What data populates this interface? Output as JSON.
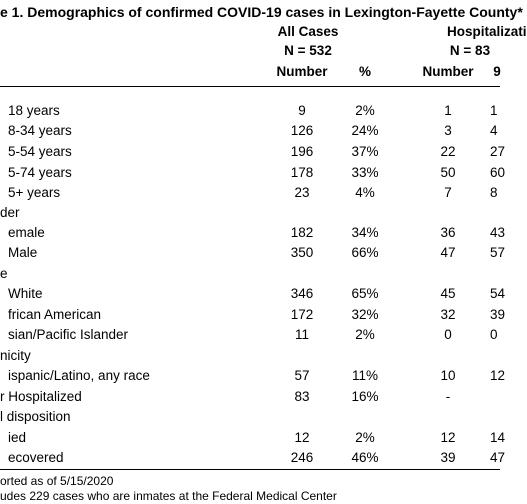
{
  "table": {
    "title": "e 1. Demographics of confirmed COVID-19 cases in Lexington-Fayette County*",
    "group_headers": [
      "All Cases",
      "Hospitalizati"
    ],
    "group_counts": [
      "N = 532",
      "N = 83"
    ],
    "column_headers": [
      "Number",
      "%",
      "Number",
      "9"
    ],
    "rows": [
      [
        "18 years",
        "9",
        "2%",
        "1",
        "1"
      ],
      [
        "8-34 years",
        "126",
        "24%",
        "3",
        "4"
      ],
      [
        "5-54 years",
        "196",
        "37%",
        "22",
        "27"
      ],
      [
        "5-74 years",
        "178",
        "33%",
        "50",
        "60"
      ],
      [
        "5+ years",
        "23",
        "4%",
        "7",
        "8"
      ],
      [
        "der"
      ],
      [
        "emale",
        "182",
        "34%",
        "36",
        "43"
      ],
      [
        "Male",
        "350",
        "66%",
        "47",
        "57"
      ],
      [
        "e"
      ],
      [
        "White",
        "346",
        "65%",
        "45",
        "54"
      ],
      [
        "frican American",
        "172",
        "32%",
        "32",
        "39"
      ],
      [
        "sian/Pacific Islander",
        "11",
        "2%",
        "0",
        "0"
      ],
      [
        "nicity"
      ],
      [
        "ispanic/Latino, any race",
        "57",
        "11%",
        "10",
        "12"
      ],
      [
        "r Hospitalized",
        "83",
        "16%",
        "-"
      ],
      [
        "l disposition"
      ],
      [
        "ied",
        "12",
        "2%",
        "12",
        "14"
      ],
      [
        "ecovered",
        "246",
        "46%",
        "39",
        "47"
      ]
    ],
    "footnotes": [
      "orted as of 5/15/2020",
      "udes 229 cases who are inmates at the Federal Medical Center"
    ]
  }
}
